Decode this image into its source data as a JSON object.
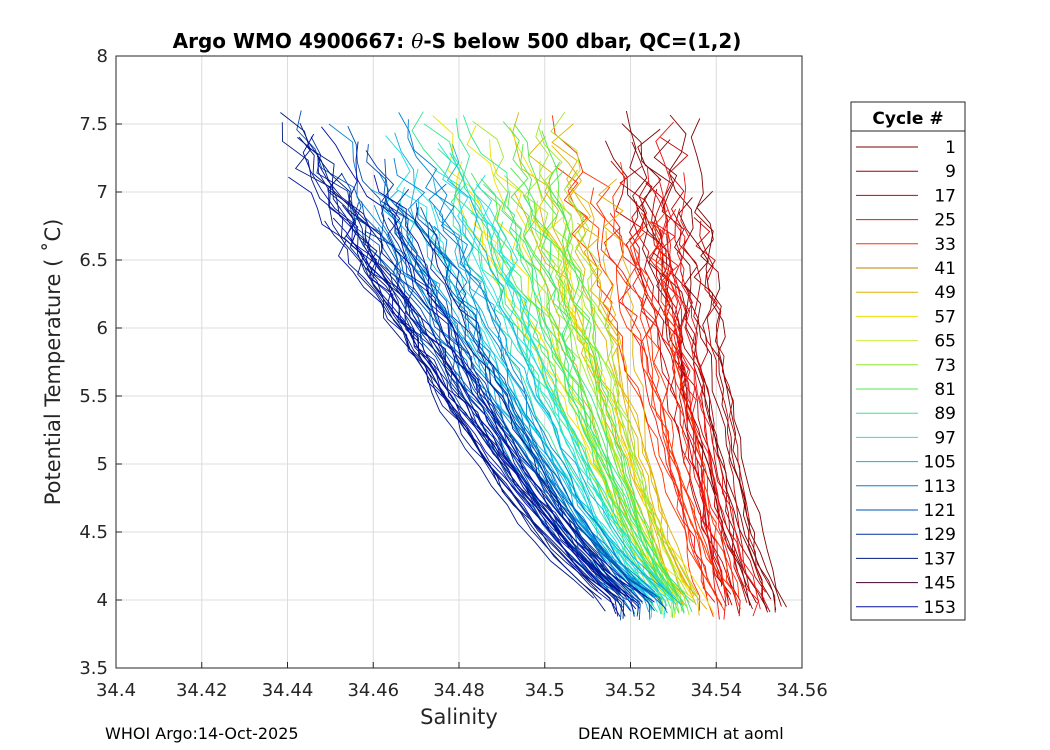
{
  "chart_data": {
    "type": "line",
    "title_prefix": "Argo WMO 4900667: ",
    "title_theta": "θ",
    "title_suffix": "-S below 500 dbar,  QC=(1,2)",
    "xlabel": "Salinity",
    "ylabel": "Potential Temperature ( ˚C)",
    "xlim": [
      34.4,
      34.56
    ],
    "ylim": [
      3.5,
      8
    ],
    "xticks": [
      34.4,
      34.42,
      34.44,
      34.46,
      34.48,
      34.5,
      34.52,
      34.54,
      34.56
    ],
    "xtick_labels": [
      "34.4",
      "34.42",
      "34.44",
      "34.46",
      "34.48",
      "34.5",
      "34.52",
      "34.54",
      "34.56"
    ],
    "yticks": [
      3.5,
      4,
      4.5,
      5,
      5.5,
      6,
      6.5,
      7,
      7.5,
      8
    ],
    "ytick_labels": [
      "3.5",
      "4",
      "4.5",
      "5",
      "5.5",
      "6",
      "6.5",
      "7",
      "7.5",
      "8"
    ],
    "grid": true,
    "legend": {
      "title": "Cycle #",
      "position": "right",
      "entries": [
        {
          "label": "1",
          "color": "#800000"
        },
        {
          "label": "9",
          "color": "#a00000"
        },
        {
          "label": "17",
          "color": "#d00000"
        },
        {
          "label": "25",
          "color": "#f01010"
        },
        {
          "label": "33",
          "color": "#ff3000"
        },
        {
          "label": "41",
          "color": "#c08000"
        },
        {
          "label": "49",
          "color": "#e0b000"
        },
        {
          "label": "57",
          "color": "#f0e000"
        },
        {
          "label": "65",
          "color": "#c8f040"
        },
        {
          "label": "73",
          "color": "#90e830"
        },
        {
          "label": "81",
          "color": "#50e850"
        },
        {
          "label": "89",
          "color": "#30e890"
        },
        {
          "label": "97",
          "color": "#20e0e0"
        },
        {
          "label": "105",
          "color": "#10b0e0"
        },
        {
          "label": "113",
          "color": "#0080d0"
        },
        {
          "label": "121",
          "color": "#0050b0"
        },
        {
          "label": "129",
          "color": "#0030a0"
        },
        {
          "label": "137",
          "color": "#001880"
        },
        {
          "label": "145",
          "color": "#400030"
        },
        {
          "label": "153",
          "color": "#0010a0"
        }
      ]
    },
    "series_model": {
      "description": "One theta-S profile per cycle; salinity at 4 C and at 7 C per colour group",
      "groups": [
        {
          "color": "#800000",
          "s_at_4": 34.552,
          "s_at_7": 34.531
        },
        {
          "color": "#c00000",
          "s_at_4": 34.548,
          "s_at_7": 34.527
        },
        {
          "color": "#f01010",
          "s_at_4": 34.545,
          "s_at_7": 34.522
        },
        {
          "color": "#ff3000",
          "s_at_4": 34.542,
          "s_at_7": 34.516
        },
        {
          "color": "#e0b000",
          "s_at_4": 34.536,
          "s_at_7": 34.505
        },
        {
          "color": "#f0e000",
          "s_at_4": 34.533,
          "s_at_7": 34.492
        },
        {
          "color": "#a0e830",
          "s_at_4": 34.532,
          "s_at_7": 34.5
        },
        {
          "color": "#50e850",
          "s_at_4": 34.53,
          "s_at_7": 34.493
        },
        {
          "color": "#30e890",
          "s_at_4": 34.529,
          "s_at_7": 34.485
        },
        {
          "color": "#20e0e0",
          "s_at_4": 34.528,
          "s_at_7": 34.478
        },
        {
          "color": "#10b0e0",
          "s_at_4": 34.526,
          "s_at_7": 34.47
        },
        {
          "color": "#0080d0",
          "s_at_4": 34.524,
          "s_at_7": 34.466
        },
        {
          "color": "#0050b0",
          "s_at_4": 34.522,
          "s_at_7": 34.463
        },
        {
          "color": "#0030a0",
          "s_at_4": 34.52,
          "s_at_7": 34.46
        },
        {
          "color": "#001880",
          "s_at_4": 34.518,
          "s_at_7": 34.457
        },
        {
          "color": "#0010a0",
          "s_at_4": 34.521,
          "s_at_7": 34.454
        }
      ],
      "profiles_per_group": 10,
      "theta_top_range": [
        6.7,
        7.6
      ],
      "theta_bottom_range": [
        3.85,
        4.1
      ]
    }
  },
  "footer": {
    "left": "WHOI Argo:14-Oct-2025",
    "right": "DEAN ROEMMICH at aoml"
  }
}
